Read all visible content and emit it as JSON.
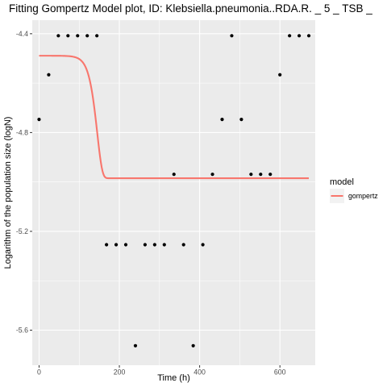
{
  "chart_data": {
    "type": "scatter",
    "title": "Fitting Gompertz Model plot, ID: Klebsiella.pneumonia..RDA.R. _ 5 _ TSB _",
    "xlabel": "Time (h)",
    "ylabel": "Logarithm of the population size (logN)",
    "xlim": [
      -17,
      688
    ],
    "ylim": [
      -5.742,
      -4.345
    ],
    "x_ticks": [
      0,
      200,
      400,
      600
    ],
    "x_tick_labels": [
      "0",
      "200",
      "400",
      "600"
    ],
    "y_ticks": [
      -5.6,
      -5.2,
      -4.8,
      -4.4
    ],
    "y_tick_labels": [
      "-5.6",
      "-5.2",
      "-4.8",
      "-4.4"
    ],
    "grid": true,
    "legend_position": "right",
    "legend": {
      "title": "model",
      "entries": [
        {
          "name": "gompertz",
          "color": "#F8766D"
        }
      ]
    },
    "colors": {
      "panel": "#EBEBEB",
      "points": "#000000",
      "fit_line": "#F8766D"
    },
    "points": [
      {
        "x": 0,
        "y": -4.747
      },
      {
        "x": 24,
        "y": -4.566
      },
      {
        "x": 48,
        "y": -4.408
      },
      {
        "x": 72,
        "y": -4.408
      },
      {
        "x": 96,
        "y": -4.408
      },
      {
        "x": 120,
        "y": -4.408
      },
      {
        "x": 144,
        "y": -4.408
      },
      {
        "x": 168,
        "y": -5.254
      },
      {
        "x": 192,
        "y": -5.254
      },
      {
        "x": 216,
        "y": -5.254
      },
      {
        "x": 240,
        "y": -5.663
      },
      {
        "x": 264,
        "y": -5.254
      },
      {
        "x": 288,
        "y": -5.254
      },
      {
        "x": 312,
        "y": -5.254
      },
      {
        "x": 336,
        "y": -4.969
      },
      {
        "x": 360,
        "y": -5.254
      },
      {
        "x": 384,
        "y": -5.663
      },
      {
        "x": 408,
        "y": -5.254
      },
      {
        "x": 432,
        "y": -4.969
      },
      {
        "x": 456,
        "y": -4.747
      },
      {
        "x": 480,
        "y": -4.408
      },
      {
        "x": 504,
        "y": -4.747
      },
      {
        "x": 528,
        "y": -4.969
      },
      {
        "x": 552,
        "y": -4.969
      },
      {
        "x": 576,
        "y": -4.969
      },
      {
        "x": 600,
        "y": -4.566
      },
      {
        "x": 624,
        "y": -4.408
      },
      {
        "x": 648,
        "y": -4.408
      },
      {
        "x": 672,
        "y": -4.408
      }
    ],
    "series": [
      {
        "name": "gompertz",
        "model": "gompertz",
        "x_range": [
          0,
          672
        ],
        "upper": -4.489,
        "lower": -4.985,
        "t_mid": 145,
        "rate": 0.08
      }
    ]
  }
}
